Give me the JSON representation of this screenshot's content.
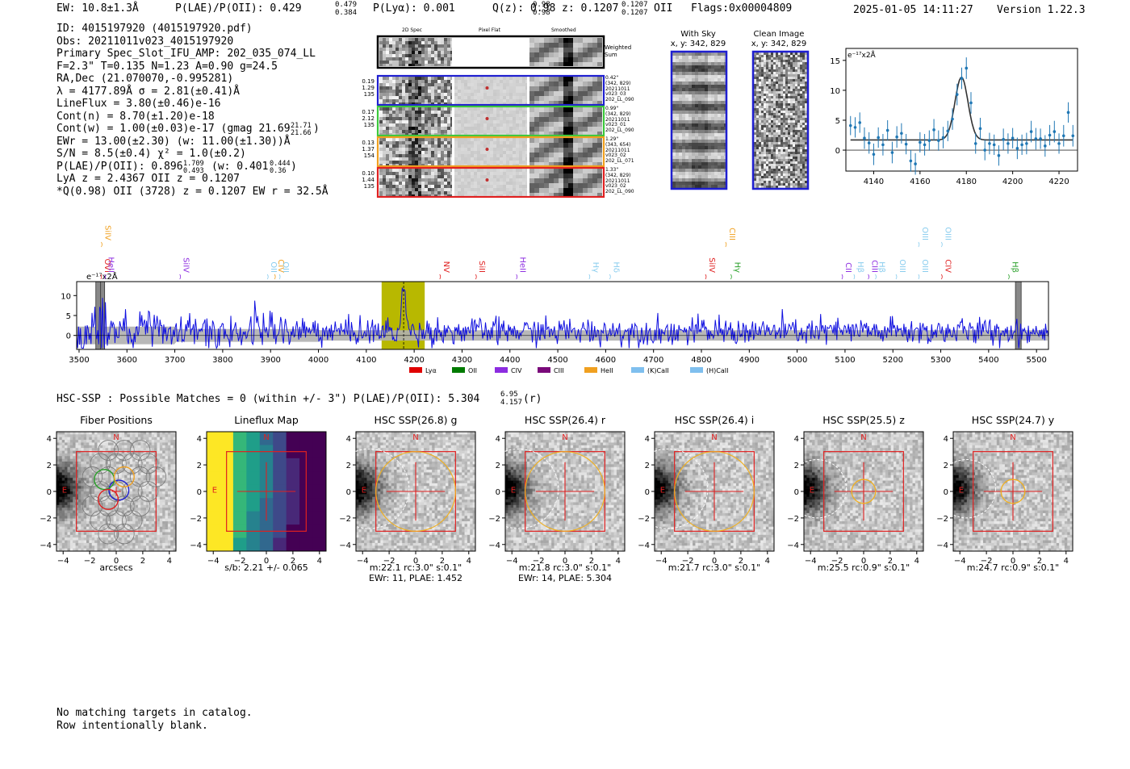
{
  "header": {
    "ew": "EW: 10.8±1.3Å",
    "plae_label": "P(LAE)/P(OII): 0.429",
    "plae_hi": "0.479",
    "plae_lo": "0.384",
    "plya": "P(Lyα): 0.001",
    "qz_label": "Q(z): 0.98",
    "qz_hi": "0.98",
    "qz_lo": "0.98",
    "z_label": "z: 0.1207",
    "z_hi": "0.1207",
    "z_lo": "0.1207",
    "z_line": "OII",
    "flags": "Flags:0x00004809",
    "datetime": "2025-01-05 14:11:27",
    "version": "Version 1.22.3"
  },
  "info": {
    "id": "ID: 4015197920 (4015197920.pdf)",
    "obs": "Obs: 20211011v023_4015197920",
    "primary": "Primary Spec_Slot_IFU_AMP: 202_035_074_LL",
    "fiber": "F=2.3\"  T=0.135  N=1.23  A=0.90  g=24.5",
    "radec": "RA,Dec (21.070070,-0.995281)",
    "lambda": "λ = 4177.89Å  σ = 2.81(±0.41)Å",
    "lineflux": "LineFlux = 3.80(±0.46)e-16",
    "contn": "Cont(n) = 8.70(±1.20)e-18",
    "contw": "Cont(w) = 1.00(±0.03)e-17 (gmag 21.69",
    "contw_hi": "21.71",
    "contw_lo": "21.66",
    "contw_end": ")",
    "ewr": "EWr = 13.00(±2.30) (w: 11.00(±1.30))Å",
    "sn": "S/N = 8.5(±0.4)  χ² = 1.0(±0.2)",
    "plae": "P(LAE)/P(OII): 0.896",
    "plae_hi": "1.709",
    "plae_lo": "0.493",
    "plae_w": "(w: 0.401",
    "plae_w_hi": "0.444",
    "plae_w_lo": "0.36",
    "plae_w_end": ")",
    "lya": "LyA z = 2.4367  OII z = 0.1207",
    "q": "*Q(0.98) OII (3728) z = 0.1207  EW r = 32.5Å"
  },
  "cutouts": {
    "col_titles": [
      "2D Spec",
      "Pixel Flat",
      "Smoothed"
    ],
    "weighted_sum": "Weighted Sum",
    "rows": [
      {
        "left": [
          "0.19",
          "1.29",
          "135"
        ],
        "right": [
          "0.42\"",
          "(342, 829)",
          "20211011",
          "v023_03",
          "202_LL_090"
        ],
        "color": "#1f1fd0"
      },
      {
        "left": [
          "0.17",
          "2.12",
          "135"
        ],
        "right": [
          "0.99\"",
          "(342, 829)",
          "20211011",
          "v023_01",
          "202_LL_090"
        ],
        "color": "#3cc83c"
      },
      {
        "left": [
          "0.13",
          "1.37",
          "154"
        ],
        "right": [
          "1.29\"",
          "(343, 654)",
          "20211011",
          "v023_02",
          "202_LL_071"
        ],
        "color": "#f0a020"
      },
      {
        "left": [
          "0.10",
          "1.44",
          "135"
        ],
        "right": [
          "1.33\"",
          "(342, 829)",
          "20211011",
          "v023_02",
          "202_LL_090"
        ],
        "color": "#e02020"
      }
    ]
  },
  "sky": {
    "with_sky_title": "With Sky",
    "with_sky_xy": "x, y: 342, 829",
    "clean_title": "Clean Image",
    "clean_xy": "x, y: 342, 829"
  },
  "chart_data": [
    {
      "type": "scatter",
      "title": "",
      "ylabel": "e⁻¹⁷x2Å",
      "xlim": [
        4128,
        4228
      ],
      "ylim": [
        -3.5,
        17
      ],
      "xticks": [
        4140,
        4160,
        4180,
        4200,
        4220
      ],
      "yticks": [
        0,
        5,
        10,
        15
      ],
      "points": {
        "x": [
          4130,
          4132,
          4134,
          4136,
          4138,
          4140,
          4142,
          4144,
          4146,
          4148,
          4150,
          4152,
          4154,
          4156,
          4158,
          4160,
          4162,
          4164,
          4166,
          4168,
          4170,
          4172,
          4174,
          4176,
          4178,
          4180,
          4182,
          4184,
          4186,
          4188,
          4190,
          4192,
          4194,
          4196,
          4198,
          4200,
          4202,
          4204,
          4206,
          4208,
          4210,
          4212,
          4214,
          4216,
          4218,
          4220,
          4222,
          4224,
          4226
        ],
        "y": [
          4.1,
          3.8,
          4.6,
          2.0,
          1.2,
          -0.7,
          2.1,
          0.9,
          3.3,
          -0.4,
          2.2,
          2.8,
          1.0,
          -1.8,
          -2.3,
          1.3,
          0.9,
          1.6,
          3.4,
          1.6,
          2.1,
          3.2,
          5.2,
          9.3,
          12.0,
          13.7,
          7.9,
          1.1,
          3.6,
          0.0,
          1.1,
          0.9,
          -0.9,
          1.8,
          1.1,
          2.0,
          0.3,
          0.9,
          1.1,
          3.1,
          1.9,
          1.9,
          0.7,
          2.5,
          3.1,
          1.1,
          2.4,
          6.3,
          2.4
        ],
        "err": [
          1.6,
          1.7,
          1.7,
          1.8,
          1.8,
          1.8,
          1.7,
          1.8,
          1.7,
          1.8,
          1.8,
          1.7,
          1.7,
          1.8,
          1.8,
          1.7,
          1.8,
          1.7,
          1.8,
          1.7,
          1.8,
          1.7,
          1.8,
          1.8,
          1.8,
          1.8,
          1.8,
          1.7,
          1.8,
          1.7,
          1.8,
          1.7,
          1.7,
          1.8,
          1.7,
          1.7,
          1.8,
          1.7,
          1.8,
          1.8,
          1.8,
          1.7,
          1.8,
          1.7,
          1.8,
          1.7,
          1.8,
          1.7,
          1.8
        ]
      },
      "fit": {
        "continuum": 1.7,
        "center": 4177.9,
        "sigma": 2.81,
        "peak": 12.2
      }
    },
    {
      "type": "line",
      "title": "",
      "ylabel": "e⁻¹⁷x2Å",
      "xlim": [
        3495,
        5525
      ],
      "ylim": [
        -3.5,
        13.5
      ],
      "xticks": [
        3500,
        3600,
        3700,
        3800,
        3900,
        4000,
        4100,
        4200,
        4300,
        4400,
        4500,
        4600,
        4700,
        4800,
        4900,
        5000,
        5100,
        5200,
        5300,
        5400,
        5500
      ],
      "yticks": [
        0,
        5,
        10
      ],
      "highlight": {
        "from": 4132,
        "to": 4222,
        "color": "#b8b800"
      },
      "line_center": 4178,
      "masked": [
        [
          3535,
          3552
        ],
        [
          3545,
          3552
        ],
        [
          5456,
          5468
        ]
      ],
      "series_color": "#1010e0",
      "noise_color": "#b0b0b0",
      "line_markers": [
        {
          "name": "SiIV",
          "x": 3548,
          "color": "#f0a020",
          "row": 0
        },
        {
          "name": "OVI",
          "x": 3547,
          "color": "#e02020",
          "row": 2
        },
        {
          "name": "HeII",
          "x": 3555,
          "color": "#8c2ce0",
          "row": 2
        },
        {
          "name": "SiIV",
          "x": 3712,
          "color": "#8c2ce0",
          "row": 2
        },
        {
          "name": "OII",
          "x": 3895,
          "color": "#88ccee",
          "row": 2
        },
        {
          "name": "CIV",
          "x": 3910,
          "color": "#f0a020",
          "row": 2
        },
        {
          "name": "OII",
          "x": 3920,
          "color": "#88ccee",
          "row": 2
        },
        {
          "name": "NV",
          "x": 4255,
          "color": "#e02020",
          "row": 2
        },
        {
          "name": "SiII",
          "x": 4330,
          "color": "#e02020",
          "row": 2
        },
        {
          "name": "HeII",
          "x": 4415,
          "color": "#8c2ce0",
          "row": 2
        },
        {
          "name": "Hγ",
          "x": 4567,
          "color": "#88ccee",
          "row": 2
        },
        {
          "name": "Hδ",
          "x": 4610,
          "color": "#88ccee",
          "row": 2
        },
        {
          "name": "CIII",
          "x": 4852,
          "color": "#f0a020",
          "row": 0
        },
        {
          "name": "SiIV",
          "x": 4810,
          "color": "#e02020",
          "row": 2
        },
        {
          "name": "Hγ",
          "x": 4863,
          "color": "#2aa02a",
          "row": 2
        },
        {
          "name": "CII",
          "x": 5095,
          "color": "#8c2ce0",
          "row": 2
        },
        {
          "name": "Hβ",
          "x": 5120,
          "color": "#88ccee",
          "row": 2
        },
        {
          "name": "CIII",
          "x": 5150,
          "color": "#8c2ce0",
          "row": 2
        },
        {
          "name": "Hβ",
          "x": 5165,
          "color": "#88ccee",
          "row": 2
        },
        {
          "name": "OIII",
          "x": 5208,
          "color": "#88ccee",
          "row": 2
        },
        {
          "name": "OIII",
          "x": 5255,
          "color": "#88ccee",
          "row": 0
        },
        {
          "name": "OIII",
          "x": 5255,
          "color": "#88ccee",
          "row": 2
        },
        {
          "name": "OIII",
          "x": 5303,
          "color": "#88ccee",
          "row": 0
        },
        {
          "name": "CIV",
          "x": 5303,
          "color": "#e02020",
          "row": 2
        },
        {
          "name": "Hβ",
          "x": 5443,
          "color": "#2aa02a",
          "row": 2
        }
      ],
      "legend": [
        {
          "name": "Lyα",
          "color": "#e00000"
        },
        {
          "name": "OII",
          "color": "#007a00"
        },
        {
          "name": "CIV",
          "color": "#8c2ce0"
        },
        {
          "name": "CIII",
          "color": "#7a0a7a"
        },
        {
          "name": "HeII",
          "color": "#f0a020"
        },
        {
          "name": "(K)CaII",
          "color": "#7fbfee"
        },
        {
          "name": "(H)CaII",
          "color": "#7fbfee"
        }
      ]
    }
  ],
  "hsc": {
    "summary": "HSC-SSP : Possible Matches = 0 (within +/- 3\")  P(LAE)/P(OII): 5.304",
    "summary_hi": "6.95",
    "summary_lo": "4.157",
    "summary_band": "(r)",
    "panels": [
      {
        "title": "Fiber Positions",
        "cap1": "arcsecs",
        "cap2": "",
        "kind": "fiber"
      },
      {
        "title": "Lineflux Map",
        "cap1": "s/b: 2.21 +/- 0.065",
        "cap2": "",
        "kind": "lineflux"
      },
      {
        "title": "HSC SSP(26.8) g",
        "cap1": "m:22.1 rc:3.0\"  s:0.1\"",
        "cap2": "EWr: 11, PLAE: 1.452",
        "kind": "big"
      },
      {
        "title": "HSC SSP(26.4) r",
        "cap1": "m:21.8 rc:3.0\"  s:0.1\"",
        "cap2": "EWr: 14, PLAE: 5.304",
        "kind": "big"
      },
      {
        "title": "HSC SSP(26.4) i",
        "cap1": "m:21.7 rc:3.0\"  s:0.1\"",
        "cap2": "",
        "kind": "big"
      },
      {
        "title": "HSC SSP(25.5) z",
        "cap1": "m:25.5 rc:0.9\"  s:0.1\"",
        "cap2": "",
        "kind": "small"
      },
      {
        "title": "HSC SSP(24.7) y",
        "cap1": "m:24.7 rc:0.9\"  s:0.1\"",
        "cap2": "",
        "kind": "small"
      }
    ],
    "ticks": [
      "−4",
      "−2",
      "0",
      "2",
      "4"
    ],
    "n_label": "N",
    "e_label": "E"
  },
  "footer": {
    "line1": "No matching targets in catalog.",
    "line2": "Row intentionally blank."
  }
}
